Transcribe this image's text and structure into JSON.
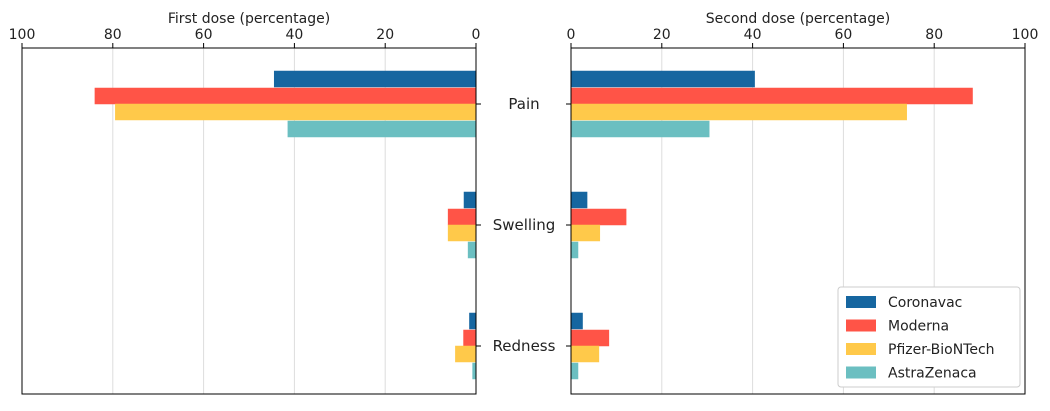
{
  "chart_data": {
    "type": "bar",
    "orientation": "horizontal",
    "categories": [
      "Pain",
      "Swelling",
      "Redness"
    ],
    "panels": [
      {
        "title": "First dose (percentage)",
        "xlim": [
          100,
          0
        ],
        "xticks": [
          100,
          80,
          60,
          40,
          20,
          0
        ],
        "series": [
          {
            "name": "Coronavac",
            "values": [
              44.5,
              2.7,
              1.5
            ]
          },
          {
            "name": "Moderna",
            "values": [
              84,
              6.2,
              2.8
            ]
          },
          {
            "name": "Pfizer-BioNTech",
            "values": [
              79.5,
              6.2,
              4.6
            ]
          },
          {
            "name": "AstraZenaca",
            "values": [
              41.5,
              1.8,
              0.8
            ]
          }
        ]
      },
      {
        "title": "Second dose (percentage)",
        "xlim": [
          0,
          100
        ],
        "xticks": [
          0,
          20,
          40,
          60,
          80,
          100
        ],
        "series": [
          {
            "name": "Coronavac",
            "values": [
              40.5,
              3.6,
              2.6
            ]
          },
          {
            "name": "Moderna",
            "values": [
              88.5,
              12.2,
              8.4
            ]
          },
          {
            "name": "Pfizer-BioNTech",
            "values": [
              74,
              6.4,
              6.2
            ]
          },
          {
            "name": "AstraZenaca",
            "values": [
              30.5,
              1.6,
              1.6
            ]
          }
        ]
      }
    ],
    "legend": {
      "placement": "bottom-right",
      "entries": [
        "Coronavac",
        "Moderna",
        "Pfizer-BioNTech",
        "AstraZenaca"
      ]
    },
    "colors": [
      "#1666a0",
      "#ff5447",
      "#ffc94a",
      "#6bbfc1"
    ],
    "grid": "vertical"
  }
}
